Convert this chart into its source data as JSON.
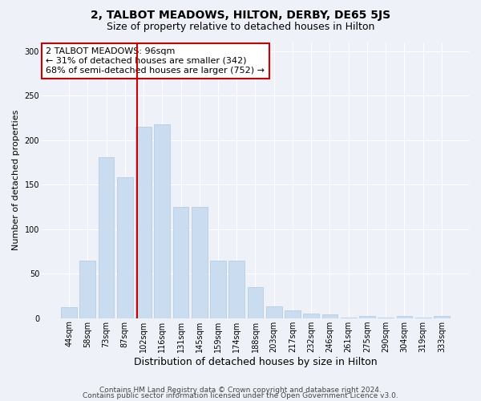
{
  "title": "2, TALBOT MEADOWS, HILTON, DERBY, DE65 5JS",
  "subtitle": "Size of property relative to detached houses in Hilton",
  "xlabel": "Distribution of detached houses by size in Hilton",
  "ylabel": "Number of detached properties",
  "categories": [
    "44sqm",
    "58sqm",
    "73sqm",
    "87sqm",
    "102sqm",
    "116sqm",
    "131sqm",
    "145sqm",
    "159sqm",
    "174sqm",
    "188sqm",
    "203sqm",
    "217sqm",
    "232sqm",
    "246sqm",
    "261sqm",
    "275sqm",
    "290sqm",
    "304sqm",
    "319sqm",
    "333sqm"
  ],
  "values": [
    12,
    65,
    181,
    158,
    215,
    218,
    125,
    125,
    65,
    65,
    35,
    13,
    9,
    5,
    4,
    1,
    2,
    1,
    2,
    1,
    2
  ],
  "bar_color": "#c9dcf0",
  "bar_edge_color": "#b0c8e0",
  "vline_index": 3.64,
  "vline_color": "#cc0000",
  "annotation_text": "2 TALBOT MEADOWS: 96sqm\n← 31% of detached houses are smaller (342)\n68% of semi-detached houses are larger (752) →",
  "annotation_box_color": "#ffffff",
  "annotation_box_edge": "#cc0000",
  "ylim": [
    0,
    310
  ],
  "yticks": [
    0,
    50,
    100,
    150,
    200,
    250,
    300
  ],
  "footer1": "Contains HM Land Registry data © Crown copyright and database right 2024.",
  "footer2": "Contains public sector information licensed under the Open Government Licence v3.0.",
  "bg_color": "#eef2f8",
  "plot_bg_color": "#eef2f8",
  "grid_color": "#ffffff",
  "title_fontsize": 10,
  "subtitle_fontsize": 9,
  "tick_fontsize": 7,
  "ylabel_fontsize": 8,
  "xlabel_fontsize": 9,
  "annot_fontsize": 8,
  "footer_fontsize": 6.5
}
